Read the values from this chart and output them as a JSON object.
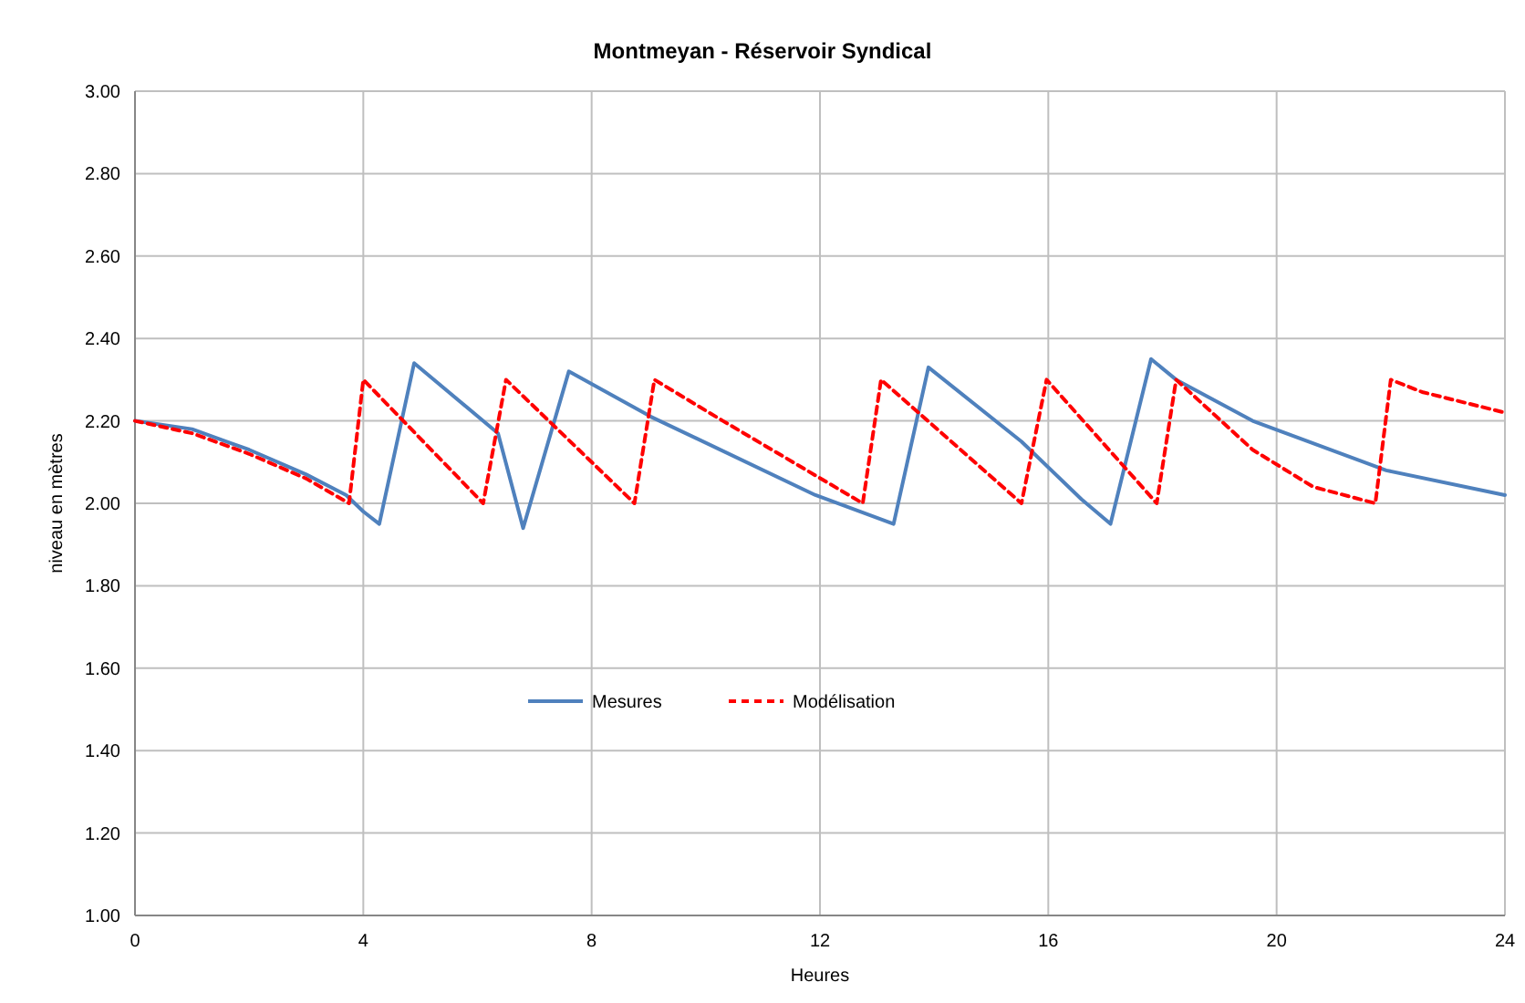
{
  "chart_data": {
    "type": "line",
    "title": "Montmeyan - Réservoir Syndical",
    "xlabel": "Heures",
    "ylabel": "niveau en mètres",
    "xlim": [
      0,
      24
    ],
    "xticks": [
      0,
      4,
      8,
      12,
      16,
      20,
      24
    ],
    "ylim": [
      1,
      3
    ],
    "yticks": [
      {
        "value": 1,
        "label": "1.00"
      },
      {
        "value": 1.2,
        "label": "1.20"
      },
      {
        "value": 1.4,
        "label": "1.40"
      },
      {
        "value": 1.6,
        "label": "1.60"
      },
      {
        "value": 1.8,
        "label": "1.80"
      },
      {
        "value": 2,
        "label": "2.00"
      },
      {
        "value": 2.2,
        "label": "2.20"
      },
      {
        "value": 2.4,
        "label": "2.40"
      },
      {
        "value": 2.6,
        "label": "2.60"
      },
      {
        "value": 2.8,
        "label": "2.80"
      },
      {
        "value": 3,
        "label": "3.00"
      }
    ],
    "grid": true,
    "legend": "bottom",
    "marker": "none",
    "series": [
      {
        "name": "Mesures",
        "color": "#4f81bd",
        "line_style": "solid",
        "x": [
          0,
          1,
          2,
          3,
          3.7,
          4,
          4.28,
          4.89,
          6.36,
          6.8,
          7.6,
          9.04,
          11.92,
          13.29,
          13.9,
          15.53,
          16.58,
          17.09,
          17.8,
          18.24,
          19.58,
          21.92,
          24
        ],
        "values": [
          2.2,
          2.18,
          2.13,
          2.07,
          2.02,
          1.98,
          1.95,
          2.34,
          2.17,
          1.94,
          2.32,
          2.21,
          2.02,
          1.95,
          2.33,
          2.15,
          2.01,
          1.95,
          2.35,
          2.3,
          2.2,
          2.08,
          2.02
        ]
      },
      {
        "name": "Modélisation",
        "color": "#ff0000",
        "line_style": "dashed",
        "x": [
          0,
          1,
          2,
          3,
          3.75,
          4,
          6.1,
          6.5,
          8.75,
          9.1,
          10.3,
          12.75,
          13.07,
          15.53,
          15.97,
          17.9,
          18.24,
          19.58,
          20.64,
          21.73,
          22,
          22.55,
          24
        ],
        "values": [
          2.2,
          2.17,
          2.12,
          2.06,
          2,
          2.3,
          2,
          2.3,
          2,
          2.3,
          2.2,
          2,
          2.3,
          2,
          2.3,
          2,
          2.3,
          2.13,
          2.04,
          2,
          2.3,
          2.27,
          2.22
        ]
      }
    ]
  }
}
